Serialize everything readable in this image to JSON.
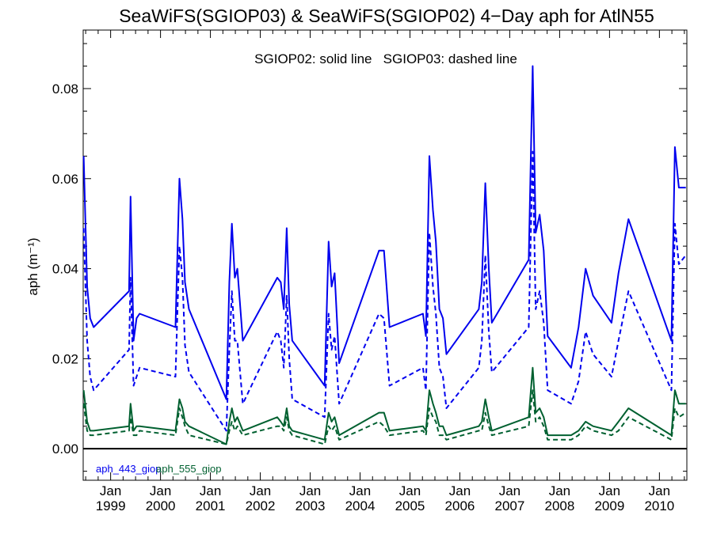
{
  "chart_data": {
    "type": "line",
    "title": "SeaWiFS(SGIOP03) & SeaWiFS(SGIOP02) 4−Day aph for AtlN55",
    "annotation": "SGIOP02: solid line   SGIOP03: dashed line",
    "ylabel": "aph (m⁻¹)",
    "xlabel": "",
    "ylim": [
      -0.007,
      0.093
    ],
    "yticks": [
      0.0,
      0.02,
      0.04,
      0.06,
      0.08
    ],
    "ytick_labels": [
      "0.00",
      "0.02",
      "0.04",
      "0.06",
      "0.08"
    ],
    "xlim": [
      1998.45,
      2010.55
    ],
    "xticks": [
      {
        "x": 1999.0,
        "top": "Jan",
        "bottom": "1999"
      },
      {
        "x": 2000.0,
        "top": "Jan",
        "bottom": "2000"
      },
      {
        "x": 2001.0,
        "top": "Jan",
        "bottom": "2001"
      },
      {
        "x": 2002.0,
        "top": "Jan",
        "bottom": "2002"
      },
      {
        "x": 2003.0,
        "top": "Jan",
        "bottom": "2003"
      },
      {
        "x": 2004.0,
        "top": "Jan",
        "bottom": "2004"
      },
      {
        "x": 2005.0,
        "top": "Jan",
        "bottom": "2005"
      },
      {
        "x": 2006.0,
        "top": "Jan",
        "bottom": "2006"
      },
      {
        "x": 2007.0,
        "top": "Jan",
        "bottom": "2007"
      },
      {
        "x": 2008.0,
        "top": "Jan",
        "bottom": "2008"
      },
      {
        "x": 2009.0,
        "top": "Jan",
        "bottom": "2009"
      },
      {
        "x": 2010.0,
        "top": "Jan",
        "bottom": "2010"
      }
    ],
    "zero_line": 0.0,
    "legend": [
      {
        "label": "aph_443_giop",
        "color": "#0000ee"
      },
      {
        "label": "aph_555_giop",
        "color": "#006030"
      }
    ],
    "series": [
      {
        "name": "aph_443_giop",
        "style": "solid",
        "color": "#0000ee",
        "points": [
          [
            1998.46,
            0.065
          ],
          [
            1998.53,
            0.036
          ],
          [
            1998.59,
            0.029
          ],
          [
            1998.66,
            0.027
          ],
          [
            1999.37,
            0.035
          ],
          [
            1999.4,
            0.056
          ],
          [
            1999.46,
            0.024
          ],
          [
            1999.52,
            0.029
          ],
          [
            1999.58,
            0.03
          ],
          [
            2000.3,
            0.027
          ],
          [
            2000.38,
            0.06
          ],
          [
            2000.44,
            0.051
          ],
          [
            2000.49,
            0.037
          ],
          [
            2000.57,
            0.031
          ],
          [
            2001.32,
            0.011
          ],
          [
            2001.38,
            0.037
          ],
          [
            2001.43,
            0.05
          ],
          [
            2001.49,
            0.038
          ],
          [
            2001.54,
            0.04
          ],
          [
            2001.65,
            0.024
          ],
          [
            2002.34,
            0.038
          ],
          [
            2002.41,
            0.037
          ],
          [
            2002.47,
            0.031
          ],
          [
            2002.53,
            0.049
          ],
          [
            2002.58,
            0.032
          ],
          [
            2002.64,
            0.024
          ],
          [
            2003.29,
            0.014
          ],
          [
            2003.37,
            0.046
          ],
          [
            2003.43,
            0.036
          ],
          [
            2003.49,
            0.039
          ],
          [
            2003.58,
            0.019
          ],
          [
            2004.38,
            0.044
          ],
          [
            2004.48,
            0.044
          ],
          [
            2004.59,
            0.027
          ],
          [
            2005.26,
            0.03
          ],
          [
            2005.32,
            0.025
          ],
          [
            2005.39,
            0.065
          ],
          [
            2005.46,
            0.053
          ],
          [
            2005.52,
            0.046
          ],
          [
            2005.59,
            0.031
          ],
          [
            2005.66,
            0.029
          ],
          [
            2005.73,
            0.021
          ],
          [
            2006.38,
            0.031
          ],
          [
            2006.44,
            0.037
          ],
          [
            2006.51,
            0.059
          ],
          [
            2006.58,
            0.04
          ],
          [
            2006.64,
            0.028
          ],
          [
            2007.38,
            0.042
          ],
          [
            2007.46,
            0.085
          ],
          [
            2007.52,
            0.048
          ],
          [
            2007.6,
            0.052
          ],
          [
            2007.68,
            0.044
          ],
          [
            2007.76,
            0.025
          ],
          [
            2008.23,
            0.018
          ],
          [
            2008.38,
            0.027
          ],
          [
            2008.52,
            0.04
          ],
          [
            2008.67,
            0.034
          ],
          [
            2009.04,
            0.028
          ],
          [
            2009.18,
            0.039
          ],
          [
            2009.38,
            0.051
          ],
          [
            2010.24,
            0.024
          ],
          [
            2010.31,
            0.067
          ],
          [
            2010.39,
            0.058
          ],
          [
            2010.53,
            0.058
          ]
        ]
      },
      {
        "name": "aph_443_giop",
        "style": "dashed",
        "color": "#0000ee",
        "points": [
          [
            1998.46,
            0.049
          ],
          [
            1998.53,
            0.024
          ],
          [
            1998.59,
            0.016
          ],
          [
            1998.66,
            0.013
          ],
          [
            1999.37,
            0.022
          ],
          [
            1999.4,
            0.038
          ],
          [
            1999.46,
            0.014
          ],
          [
            1999.52,
            0.016
          ],
          [
            1999.58,
            0.018
          ],
          [
            2000.3,
            0.016
          ],
          [
            2000.38,
            0.045
          ],
          [
            2000.44,
            0.038
          ],
          [
            2000.49,
            0.023
          ],
          [
            2000.57,
            0.017
          ],
          [
            2001.32,
            0.004
          ],
          [
            2001.38,
            0.022
          ],
          [
            2001.43,
            0.035
          ],
          [
            2001.49,
            0.024
          ],
          [
            2001.54,
            0.024
          ],
          [
            2001.65,
            0.01
          ],
          [
            2002.34,
            0.026
          ],
          [
            2002.41,
            0.024
          ],
          [
            2002.47,
            0.018
          ],
          [
            2002.53,
            0.034
          ],
          [
            2002.58,
            0.02
          ],
          [
            2002.64,
            0.011
          ],
          [
            2003.29,
            0.007
          ],
          [
            2003.37,
            0.03
          ],
          [
            2003.43,
            0.022
          ],
          [
            2003.49,
            0.025
          ],
          [
            2003.58,
            0.01
          ],
          [
            2004.38,
            0.03
          ],
          [
            2004.48,
            0.029
          ],
          [
            2004.59,
            0.014
          ],
          [
            2005.26,
            0.018
          ],
          [
            2005.32,
            0.013
          ],
          [
            2005.39,
            0.048
          ],
          [
            2005.46,
            0.036
          ],
          [
            2005.52,
            0.03
          ],
          [
            2005.59,
            0.018
          ],
          [
            2005.66,
            0.016
          ],
          [
            2005.73,
            0.009
          ],
          [
            2006.38,
            0.018
          ],
          [
            2006.44,
            0.024
          ],
          [
            2006.51,
            0.043
          ],
          [
            2006.58,
            0.026
          ],
          [
            2006.64,
            0.017
          ],
          [
            2007.38,
            0.027
          ],
          [
            2007.46,
            0.066
          ],
          [
            2007.52,
            0.031
          ],
          [
            2007.6,
            0.035
          ],
          [
            2007.68,
            0.028
          ],
          [
            2007.76,
            0.013
          ],
          [
            2008.23,
            0.01
          ],
          [
            2008.38,
            0.015
          ],
          [
            2008.52,
            0.026
          ],
          [
            2008.67,
            0.021
          ],
          [
            2009.04,
            0.016
          ],
          [
            2009.18,
            0.024
          ],
          [
            2009.38,
            0.035
          ],
          [
            2010.24,
            0.013
          ],
          [
            2010.31,
            0.05
          ],
          [
            2010.39,
            0.041
          ],
          [
            2010.53,
            0.043
          ]
        ]
      },
      {
        "name": "aph_555_giop",
        "style": "solid",
        "color": "#006030",
        "points": [
          [
            1998.46,
            0.013
          ],
          [
            1998.53,
            0.006
          ],
          [
            1998.59,
            0.004
          ],
          [
            1998.66,
            0.004
          ],
          [
            1999.37,
            0.005
          ],
          [
            1999.4,
            0.01
          ],
          [
            1999.46,
            0.004
          ],
          [
            1999.52,
            0.005
          ],
          [
            1999.58,
            0.005
          ],
          [
            2000.3,
            0.004
          ],
          [
            2000.38,
            0.011
          ],
          [
            2000.44,
            0.009
          ],
          [
            2000.49,
            0.006
          ],
          [
            2000.57,
            0.005
          ],
          [
            2001.32,
            0.001
          ],
          [
            2001.38,
            0.006
          ],
          [
            2001.43,
            0.009
          ],
          [
            2001.49,
            0.006
          ],
          [
            2001.54,
            0.007
          ],
          [
            2001.65,
            0.004
          ],
          [
            2002.34,
            0.007
          ],
          [
            2002.41,
            0.006
          ],
          [
            2002.47,
            0.005
          ],
          [
            2002.53,
            0.009
          ],
          [
            2002.58,
            0.005
          ],
          [
            2002.64,
            0.004
          ],
          [
            2003.29,
            0.002
          ],
          [
            2003.37,
            0.008
          ],
          [
            2003.43,
            0.006
          ],
          [
            2003.49,
            0.007
          ],
          [
            2003.58,
            0.003
          ],
          [
            2004.38,
            0.008
          ],
          [
            2004.48,
            0.008
          ],
          [
            2004.59,
            0.004
          ],
          [
            2005.26,
            0.005
          ],
          [
            2005.32,
            0.004
          ],
          [
            2005.39,
            0.013
          ],
          [
            2005.46,
            0.01
          ],
          [
            2005.52,
            0.008
          ],
          [
            2005.59,
            0.005
          ],
          [
            2005.66,
            0.005
          ],
          [
            2005.73,
            0.003
          ],
          [
            2006.38,
            0.005
          ],
          [
            2006.44,
            0.006
          ],
          [
            2006.51,
            0.011
          ],
          [
            2006.58,
            0.007
          ],
          [
            2006.64,
            0.004
          ],
          [
            2007.38,
            0.007
          ],
          [
            2007.46,
            0.018
          ],
          [
            2007.52,
            0.008
          ],
          [
            2007.6,
            0.009
          ],
          [
            2007.68,
            0.007
          ],
          [
            2007.76,
            0.003
          ],
          [
            2008.23,
            0.003
          ],
          [
            2008.38,
            0.004
          ],
          [
            2008.52,
            0.006
          ],
          [
            2008.67,
            0.005
          ],
          [
            2009.04,
            0.004
          ],
          [
            2009.18,
            0.006
          ],
          [
            2009.38,
            0.009
          ],
          [
            2010.24,
            0.003
          ],
          [
            2010.31,
            0.013
          ],
          [
            2010.39,
            0.01
          ],
          [
            2010.53,
            0.01
          ]
        ]
      },
      {
        "name": "aph_555_giop",
        "style": "dashed",
        "color": "#006030",
        "points": [
          [
            1998.46,
            0.01
          ],
          [
            1998.53,
            0.004
          ],
          [
            1998.59,
            0.003
          ],
          [
            1998.66,
            0.003
          ],
          [
            1999.37,
            0.004
          ],
          [
            1999.4,
            0.007
          ],
          [
            1999.46,
            0.003
          ],
          [
            1999.52,
            0.003
          ],
          [
            1999.58,
            0.004
          ],
          [
            2000.3,
            0.003
          ],
          [
            2000.38,
            0.009
          ],
          [
            2000.44,
            0.007
          ],
          [
            2000.49,
            0.005
          ],
          [
            2000.57,
            0.003
          ],
          [
            2001.32,
            0.001
          ],
          [
            2001.38,
            0.004
          ],
          [
            2001.43,
            0.006
          ],
          [
            2001.49,
            0.004
          ],
          [
            2001.54,
            0.005
          ],
          [
            2001.65,
            0.003
          ],
          [
            2002.34,
            0.005
          ],
          [
            2002.41,
            0.005
          ],
          [
            2002.47,
            0.004
          ],
          [
            2002.53,
            0.007
          ],
          [
            2002.58,
            0.004
          ],
          [
            2002.64,
            0.003
          ],
          [
            2003.29,
            0.001
          ],
          [
            2003.37,
            0.005
          ],
          [
            2003.43,
            0.004
          ],
          [
            2003.49,
            0.005
          ],
          [
            2003.58,
            0.002
          ],
          [
            2004.38,
            0.006
          ],
          [
            2004.48,
            0.005
          ],
          [
            2004.59,
            0.003
          ],
          [
            2005.26,
            0.004
          ],
          [
            2005.32,
            0.003
          ],
          [
            2005.39,
            0.009
          ],
          [
            2005.46,
            0.007
          ],
          [
            2005.52,
            0.006
          ],
          [
            2005.59,
            0.003
          ],
          [
            2005.66,
            0.003
          ],
          [
            2005.73,
            0.002
          ],
          [
            2006.38,
            0.004
          ],
          [
            2006.44,
            0.004
          ],
          [
            2006.51,
            0.008
          ],
          [
            2006.58,
            0.005
          ],
          [
            2006.64,
            0.003
          ],
          [
            2007.38,
            0.005
          ],
          [
            2007.46,
            0.013
          ],
          [
            2007.52,
            0.006
          ],
          [
            2007.6,
            0.007
          ],
          [
            2007.68,
            0.005
          ],
          [
            2007.76,
            0.002
          ],
          [
            2008.23,
            0.002
          ],
          [
            2008.38,
            0.003
          ],
          [
            2008.52,
            0.005
          ],
          [
            2008.67,
            0.004
          ],
          [
            2009.04,
            0.003
          ],
          [
            2009.18,
            0.004
          ],
          [
            2009.38,
            0.007
          ],
          [
            2010.24,
            0.002
          ],
          [
            2010.31,
            0.009
          ],
          [
            2010.39,
            0.007
          ],
          [
            2010.53,
            0.008
          ]
        ]
      }
    ]
  }
}
